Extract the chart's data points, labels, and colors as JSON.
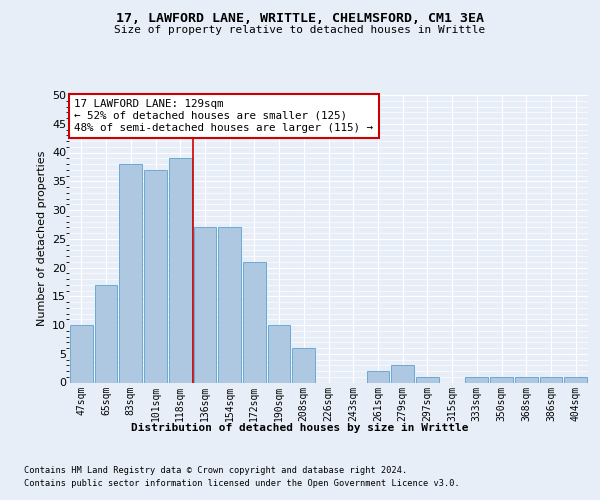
{
  "title_line1": "17, LAWFORD LANE, WRITTLE, CHELMSFORD, CM1 3EA",
  "title_line2": "Size of property relative to detached houses in Writtle",
  "xlabel": "Distribution of detached houses by size in Writtle",
  "ylabel": "Number of detached properties",
  "categories": [
    "47sqm",
    "65sqm",
    "83sqm",
    "101sqm",
    "118sqm",
    "136sqm",
    "154sqm",
    "172sqm",
    "190sqm",
    "208sqm",
    "226sqm",
    "243sqm",
    "261sqm",
    "279sqm",
    "297sqm",
    "315sqm",
    "333sqm",
    "350sqm",
    "368sqm",
    "386sqm",
    "404sqm"
  ],
  "values": [
    10,
    17,
    38,
    37,
    39,
    27,
    27,
    21,
    10,
    6,
    0,
    0,
    2,
    3,
    1,
    0,
    1,
    1,
    1,
    1,
    1
  ],
  "bar_color": "#adc8e0",
  "bar_edge_color": "#6aaad4",
  "highlight_index": 4,
  "highlight_line_color": "#cc0000",
  "annotation_text": "17 LAWFORD LANE: 129sqm\n← 52% of detached houses are smaller (125)\n48% of semi-detached houses are larger (115) →",
  "annotation_box_color": "white",
  "annotation_box_edge": "#cc0000",
  "background_color": "#e8eef8",
  "grid_color": "white",
  "ylim": [
    0,
    50
  ],
  "yticks": [
    0,
    5,
    10,
    15,
    20,
    25,
    30,
    35,
    40,
    45,
    50
  ],
  "footnote1": "Contains HM Land Registry data © Crown copyright and database right 2024.",
  "footnote2": "Contains public sector information licensed under the Open Government Licence v3.0."
}
